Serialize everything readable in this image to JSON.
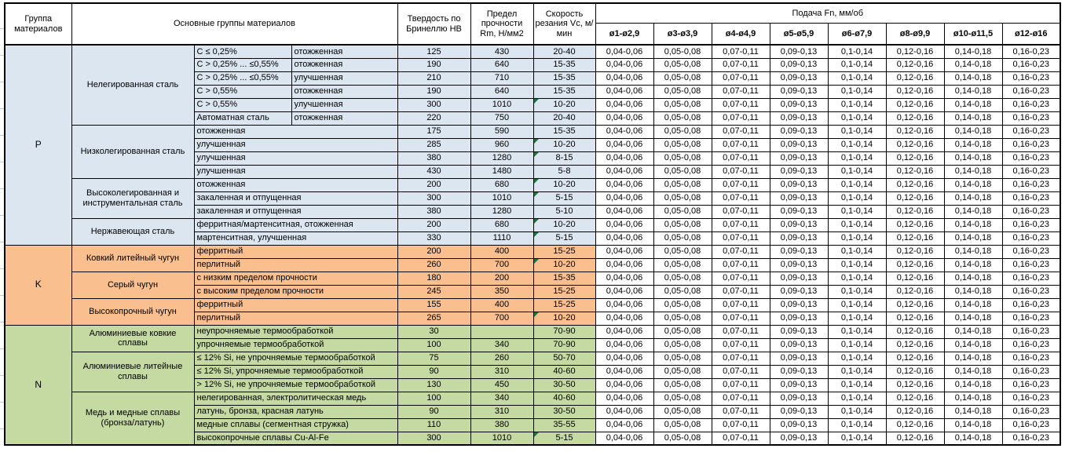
{
  "colors": {
    "p_group": "#DCE6F1",
    "k_group": "#FABF8F",
    "n_group": "#C5D9A2",
    "flag_triangle": "#1F7244",
    "border": "#000000"
  },
  "table": {
    "headers": {
      "group": "Группа материалов",
      "main_groups": "Основные группы материалов",
      "hardness": "Твердость по Бринеллю НВ",
      "strength": "Предел прочности Rm, Н/мм2",
      "speed": "Скорость резания Vc, м/мин",
      "feed": "Подача Fn, мм/об",
      "feed_diameters": [
        "ø1-ø2,9",
        "ø3-ø3,9",
        "ø4-ø4,9",
        "ø5-ø5,9",
        "ø6-ø7,9",
        "ø8-ø9,9",
        "ø10-ø11,5",
        "ø12-ø16"
      ]
    },
    "feed_values": [
      "0,04-0,06",
      "0,05-0,08",
      "0,07-0,11",
      "0,09-0,13",
      "0,1-0,14",
      "0,12-0,16",
      "0,14-0,18",
      "0,16-0,23"
    ],
    "groups": [
      {
        "letter": "P",
        "color": "#DCE6F1",
        "subgroups": [
          {
            "name": "Нелегированная сталь",
            "rows": [
              {
                "cols": [
                  "C ≤ 0,25%",
                  "отожженная"
                ],
                "hb": "125",
                "rm": "430",
                "vc": "20-40",
                "flag": false
              },
              {
                "cols": [
                  "C > 0,25% ... ≤0,55%",
                  "отожженная"
                ],
                "hb": "190",
                "rm": "640",
                "vc": "15-35",
                "flag": false
              },
              {
                "cols": [
                  "C > 0,25% ... ≤0,55%",
                  "улучшенная"
                ],
                "hb": "210",
                "rm": "710",
                "vc": "15-35",
                "flag": false
              },
              {
                "cols": [
                  "C > 0,55%",
                  "отожженная"
                ],
                "hb": "190",
                "rm": "640",
                "vc": "15-35",
                "flag": false
              },
              {
                "cols": [
                  "C > 0,55%",
                  "улучшенная"
                ],
                "hb": "300",
                "rm": "1010",
                "vc": "10-20",
                "flag": true
              },
              {
                "cols": [
                  "Автоматная сталь",
                  "отожженная"
                ],
                "hb": "220",
                "rm": "750",
                "vc": "20-40",
                "flag": false
              }
            ]
          },
          {
            "name": "Низколегированная сталь",
            "rows": [
              {
                "cols": [
                  "отожженная"
                ],
                "hb": "175",
                "rm": "590",
                "vc": "15-35",
                "flag": false
              },
              {
                "cols": [
                  "улучшенная"
                ],
                "hb": "285",
                "rm": "960",
                "vc": "10-20",
                "flag": true
              },
              {
                "cols": [
                  "улучшенная"
                ],
                "hb": "380",
                "rm": "1280",
                "vc": "8-15",
                "flag": true
              },
              {
                "cols": [
                  "улучшенная"
                ],
                "hb": "430",
                "rm": "1480",
                "vc": "5-8",
                "flag": false
              }
            ]
          },
          {
            "name": "Высоколегированная и инструментальная сталь",
            "rows": [
              {
                "cols": [
                  "отожженная"
                ],
                "hb": "200",
                "rm": "680",
                "vc": "10-20",
                "flag": true
              },
              {
                "cols": [
                  "закаленная и отпущенная"
                ],
                "hb": "300",
                "rm": "1010",
                "vc": "5-15",
                "flag": true
              },
              {
                "cols": [
                  "закаленная и отпущенная"
                ],
                "hb": "380",
                "rm": "1280",
                "vc": "5-10",
                "flag": false
              }
            ]
          },
          {
            "name": "Нержавеющая сталь",
            "rows": [
              {
                "cols": [
                  "ферритная/мартенситная, отожженная"
                ],
                "hb": "200",
                "rm": "680",
                "vc": "10-20",
                "flag": true
              },
              {
                "cols": [
                  "мартенситная, улучшенная"
                ],
                "hb": "330",
                "rm": "1110",
                "vc": "5-15",
                "flag": true
              }
            ]
          }
        ]
      },
      {
        "letter": "K",
        "color": "#FABF8F",
        "subgroups": [
          {
            "name": "Ковкий литейный чугун",
            "rows": [
              {
                "cols": [
                  "ферритный"
                ],
                "hb": "200",
                "rm": "400",
                "vc": "15-25",
                "flag": false
              },
              {
                "cols": [
                  "перлитный"
                ],
                "hb": "260",
                "rm": "700",
                "vc": "10-20",
                "flag": true
              }
            ]
          },
          {
            "name": "Серый чугун",
            "rows": [
              {
                "cols": [
                  "с низким пределом прочности"
                ],
                "hb": "180",
                "rm": "200",
                "vc": "15-35",
                "flag": false
              },
              {
                "cols": [
                  "с высоким пределом прочности"
                ],
                "hb": "245",
                "rm": "350",
                "vc": "15-25",
                "flag": false
              }
            ]
          },
          {
            "name": "Высокопрочный чугун",
            "rows": [
              {
                "cols": [
                  "ферритный"
                ],
                "hb": "155",
                "rm": "400",
                "vc": "15-25",
                "flag": false
              },
              {
                "cols": [
                  "перлитный"
                ],
                "hb": "265",
                "rm": "700",
                "vc": "10-20",
                "flag": true
              }
            ]
          }
        ]
      },
      {
        "letter": "N",
        "color": "#C5D9A2",
        "subgroups": [
          {
            "name": "Алюминиевые ковкие сплавы",
            "rows": [
              {
                "cols": [
                  "неупрочняемые термообработкой"
                ],
                "hb": "30",
                "rm": "",
                "vc": "70-90",
                "flag": false
              },
              {
                "cols": [
                  "упрочняемые термообработкой"
                ],
                "hb": "100",
                "rm": "340",
                "vc": "70-90",
                "flag": false
              }
            ]
          },
          {
            "name": "Алюминиевые литейные сплавы",
            "rows": [
              {
                "cols": [
                  "≤ 12% Si, не упрочняемые термообработкой"
                ],
                "hb": "75",
                "rm": "260",
                "vc": "50-70",
                "flag": false
              },
              {
                "cols": [
                  "≤ 12% Si, упрочняемые термообработкой"
                ],
                "hb": "90",
                "rm": "310",
                "vc": "40-60",
                "flag": false
              },
              {
                "cols": [
                  "> 12% Si, не упрочняемые термообработкой"
                ],
                "hb": "130",
                "rm": "450",
                "vc": "30-50",
                "flag": false
              }
            ]
          },
          {
            "name": "Медь и медные сплавы (бронза/латунь)",
            "rows": [
              {
                "cols": [
                  "нелегированная, электролитическая медь"
                ],
                "hb": "100",
                "rm": "340",
                "vc": "40-60",
                "flag": false
              },
              {
                "cols": [
                  "латунь, бронза, красная латунь"
                ],
                "hb": "90",
                "rm": "310",
                "vc": "30-50",
                "flag": false
              },
              {
                "cols": [
                  "медные сплавы (сегментная стружка)"
                ],
                "hb": "110",
                "rm": "380",
                "vc": "35-55",
                "flag": false
              },
              {
                "cols": [
                  "высокопрочные сплавы Cu-Al-Fe"
                ],
                "hb": "300",
                "rm": "1010",
                "vc": "5-15",
                "flag": true
              }
            ]
          }
        ]
      }
    ]
  }
}
